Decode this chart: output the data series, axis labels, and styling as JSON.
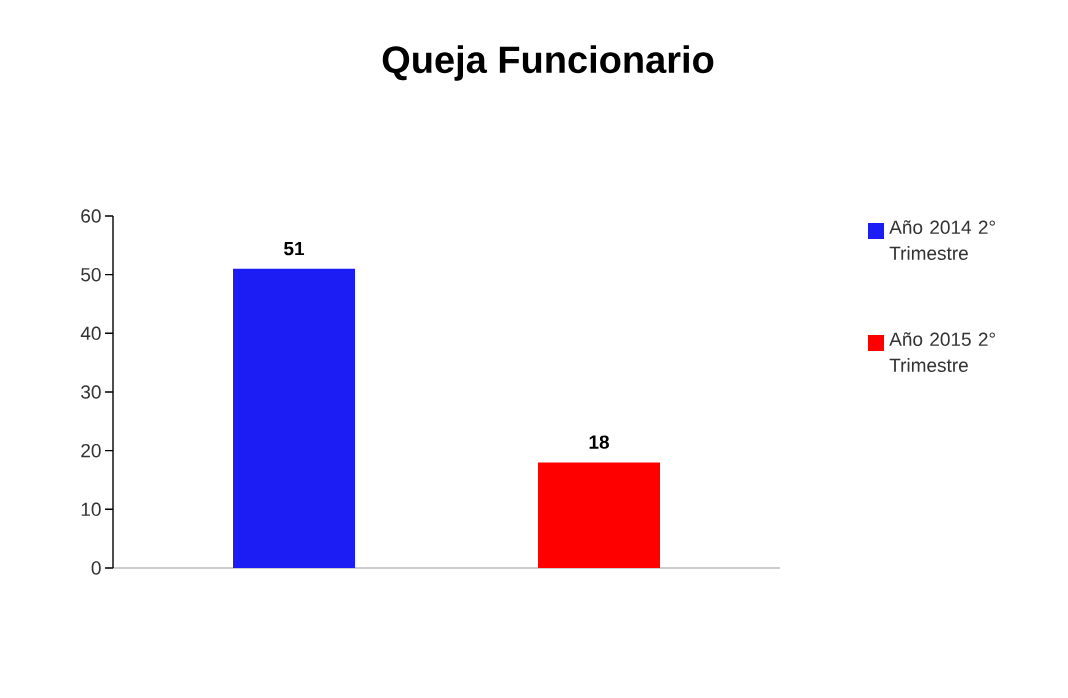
{
  "chart_data": {
    "type": "bar",
    "title": "Queja Funcionario",
    "categories": [
      null
    ],
    "series": [
      {
        "name": "Año 2014 2° Trimestre",
        "color": "#1c1cf5",
        "values": [
          51
        ]
      },
      {
        "name": "Año 2015 2° Trimestre",
        "color": "#ff0000",
        "values": [
          18
        ]
      }
    ],
    "ylim": [
      0,
      60
    ],
    "yticks": [
      0,
      10,
      20,
      30,
      40,
      50,
      60
    ],
    "data_labels": true,
    "legend": "right"
  }
}
